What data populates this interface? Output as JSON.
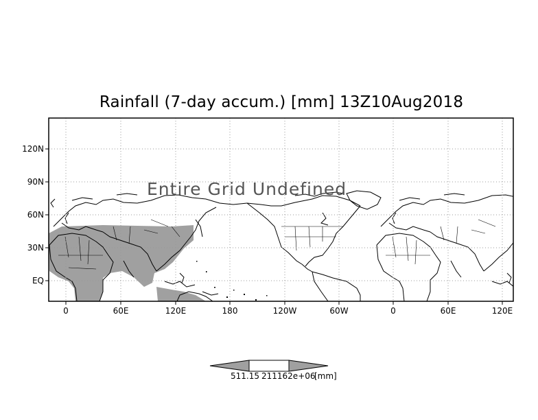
{
  "title": "Rainfall (7-day accum.) [mm] 13Z10Aug2018",
  "overlay_text": "Entire Grid Undefined",
  "y_ticks": [
    "120N",
    "90N",
    "60N",
    "30N",
    "EQ"
  ],
  "x_ticks": [
    "0",
    "60E",
    "120E",
    "180",
    "120W",
    "60W",
    "0",
    "60E",
    "120E"
  ],
  "colorbar": {
    "left_value": "511.15",
    "right_value": "211162e+06",
    "unit": "[mm]"
  },
  "colors": {
    "land_shading": "#a0a0a0",
    "grid": "#999999",
    "frame": "#000000"
  }
}
